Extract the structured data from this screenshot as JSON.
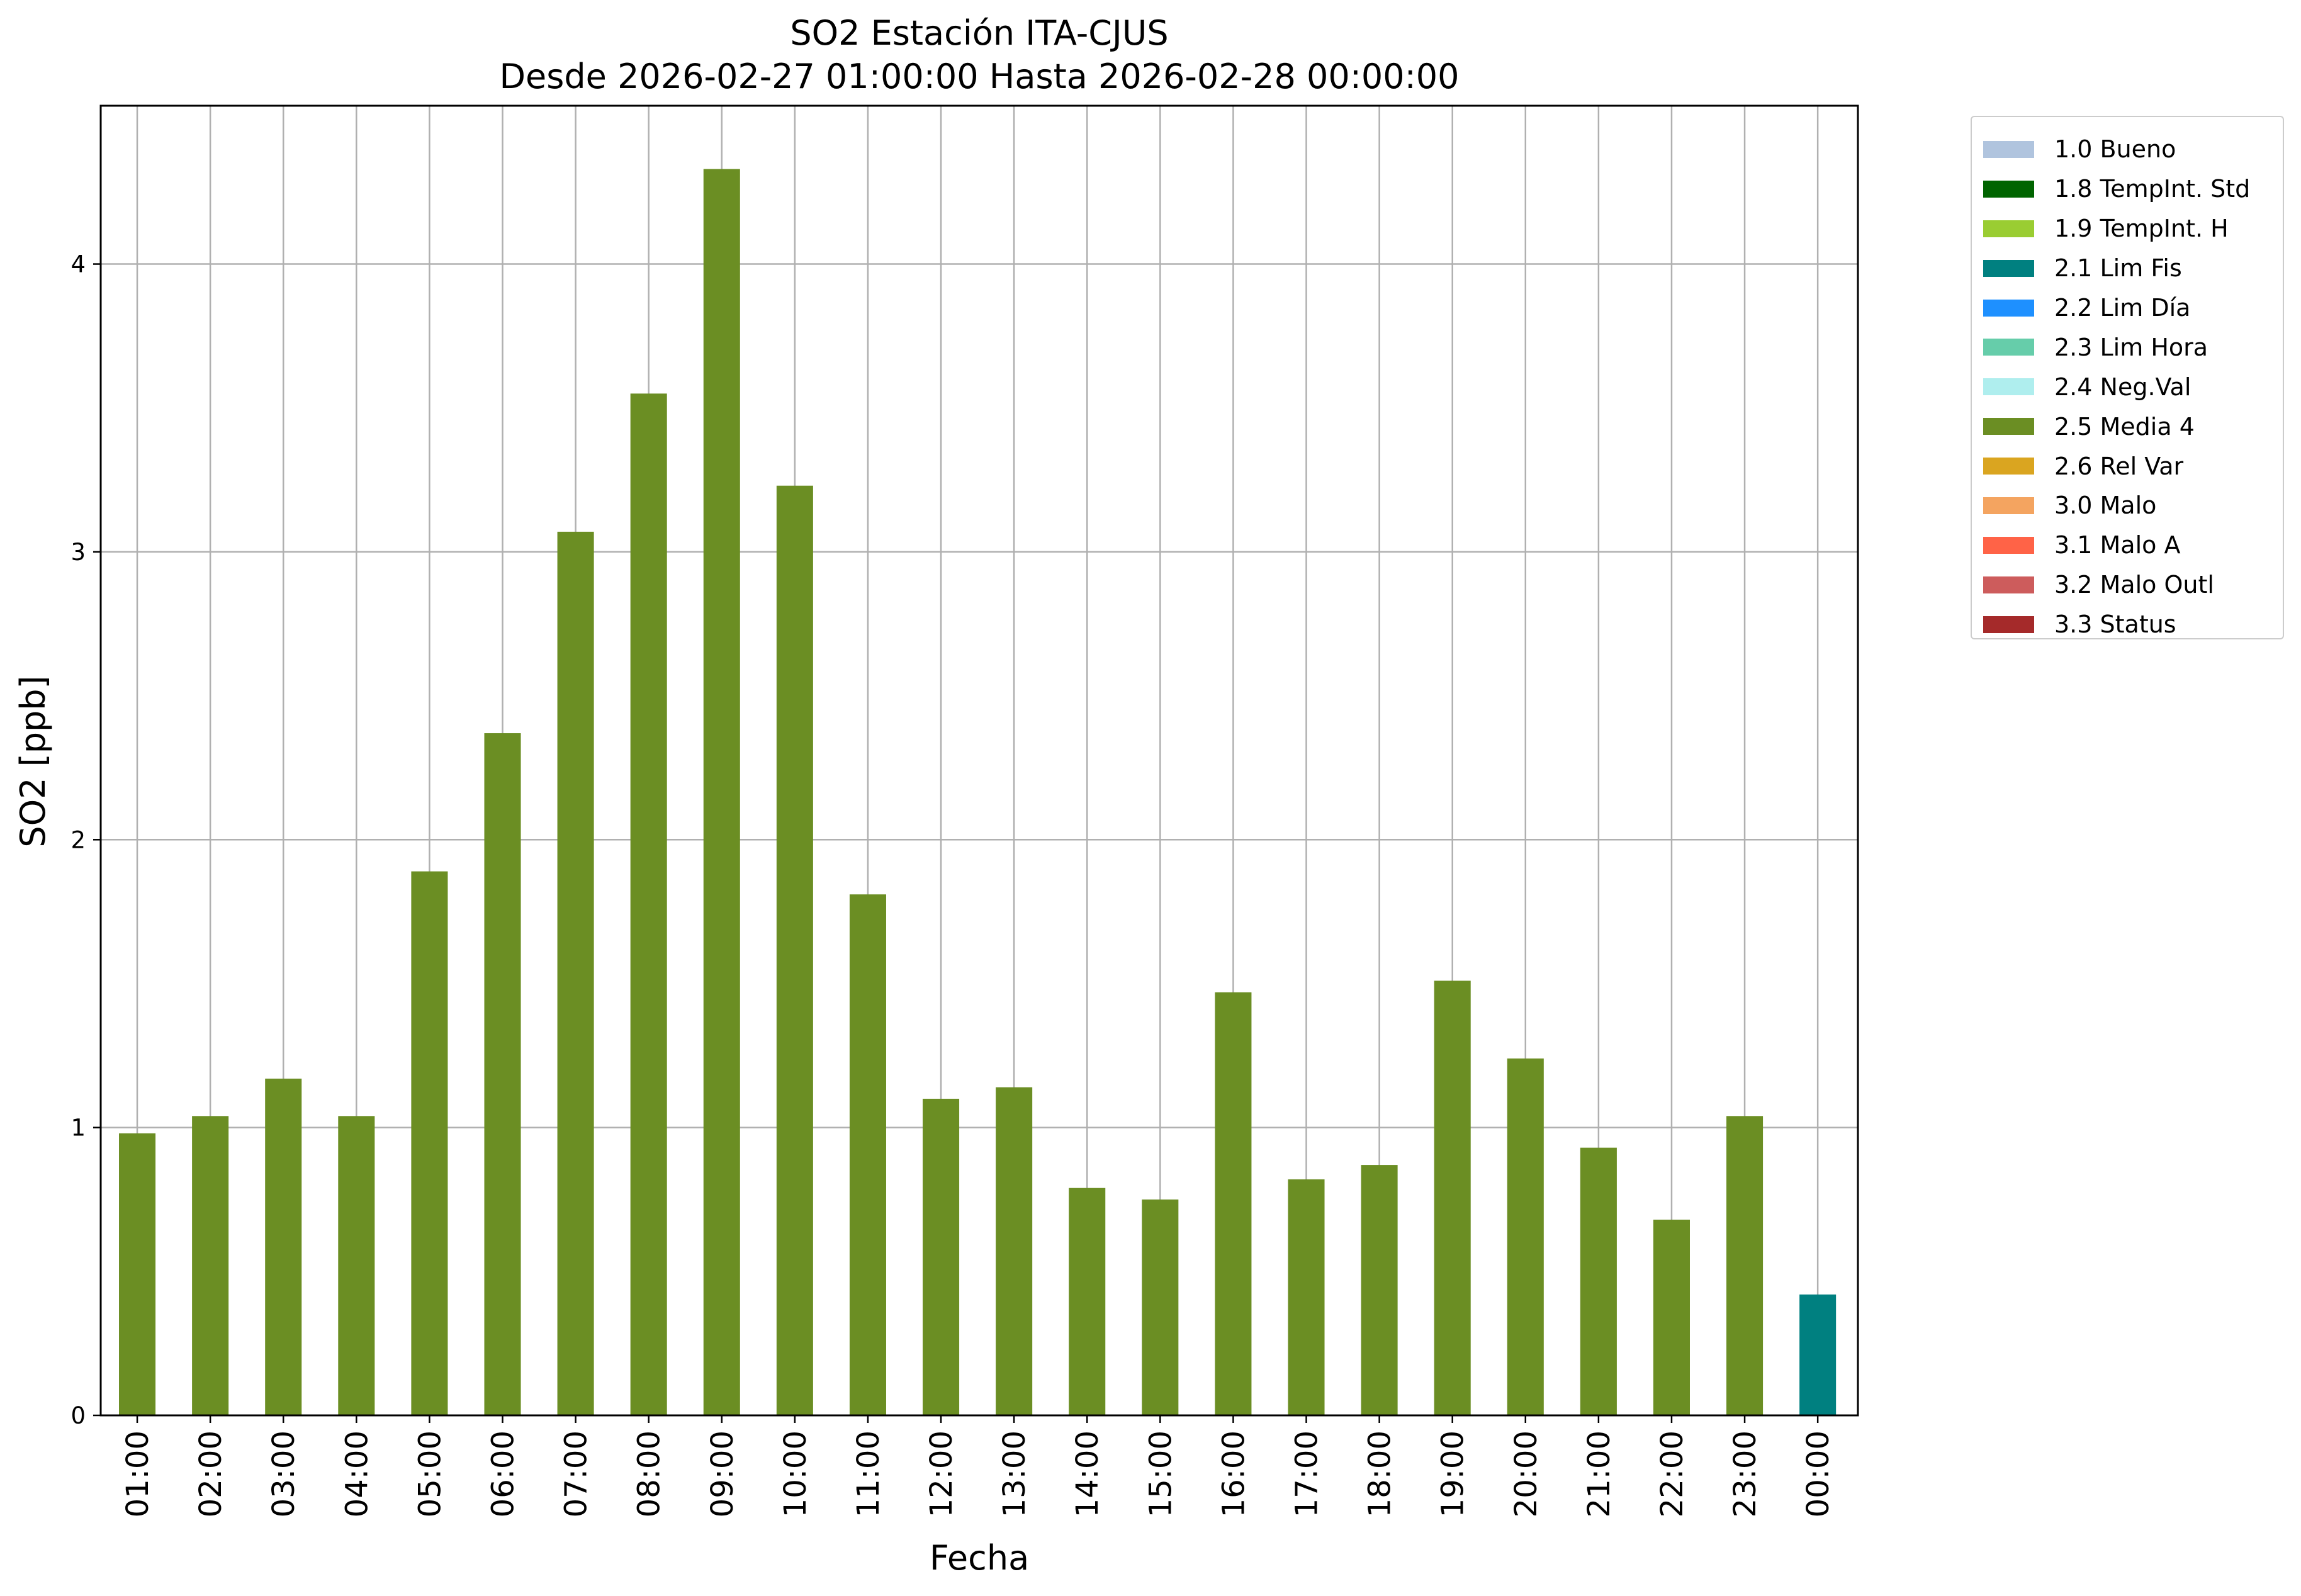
{
  "chart_data": {
    "type": "bar",
    "title": "SO2 Estación ITA-CJUS",
    "subtitle": "Desde 2026-02-27 01:00:00 Hasta 2026-02-28 00:00:00",
    "xlabel": "Fecha",
    "ylabel": "SO2 [ppb]",
    "ylim": [
      0,
      4.55
    ],
    "yticks": [
      0,
      1,
      2,
      3,
      4
    ],
    "grid": true,
    "legend_position": "outside-top-right",
    "categories": [
      "01:00",
      "02:00",
      "03:00",
      "04:00",
      "05:00",
      "06:00",
      "07:00",
      "08:00",
      "09:00",
      "10:00",
      "11:00",
      "12:00",
      "13:00",
      "14:00",
      "15:00",
      "16:00",
      "17:00",
      "18:00",
      "19:00",
      "20:00",
      "21:00",
      "22:00",
      "23:00",
      "00:00"
    ],
    "values": [
      0.98,
      1.04,
      1.17,
      1.04,
      1.89,
      2.37,
      3.07,
      3.55,
      4.33,
      3.23,
      1.81,
      1.1,
      1.14,
      0.79,
      0.75,
      1.47,
      0.82,
      0.87,
      1.51,
      1.24,
      0.93,
      0.68,
      1.04,
      0.42
    ],
    "flags": [
      "2.5",
      "2.5",
      "2.5",
      "2.5",
      "2.5",
      "2.5",
      "2.5",
      "2.5",
      "2.5",
      "2.5",
      "2.5",
      "2.5",
      "2.5",
      "2.5",
      "2.5",
      "2.5",
      "2.5",
      "2.5",
      "2.5",
      "2.5",
      "2.5",
      "2.5",
      "2.5",
      "2.1"
    ],
    "legend": [
      {
        "code": "1.0",
        "label": "1.0 Bueno",
        "color": "#b0c4de"
      },
      {
        "code": "1.8",
        "label": "1.8 TempInt. Std",
        "color": "#006400"
      },
      {
        "code": "1.9",
        "label": "1.9 TempInt. H",
        "color": "#9acd32"
      },
      {
        "code": "2.1",
        "label": "2.1 Lim Fis",
        "color": "#008080"
      },
      {
        "code": "2.2",
        "label": "2.2 Lim Día",
        "color": "#1e90ff"
      },
      {
        "code": "2.3",
        "label": "2.3 Lim Hora",
        "color": "#66cdaa"
      },
      {
        "code": "2.4",
        "label": "2.4 Neg.Val",
        "color": "#afeeee"
      },
      {
        "code": "2.5",
        "label": "2.5 Media 4",
        "color": "#6b8e23"
      },
      {
        "code": "2.6",
        "label": "2.6 Rel Var",
        "color": "#daa520"
      },
      {
        "code": "3.0",
        "label": "3.0 Malo",
        "color": "#f4a460"
      },
      {
        "code": "3.1",
        "label": "3.1 Malo A",
        "color": "#ff6347"
      },
      {
        "code": "3.2",
        "label": "3.2 Malo Outl",
        "color": "#cd5c5c"
      },
      {
        "code": "3.3",
        "label": "3.3 Status",
        "color": "#a52a2a"
      }
    ]
  }
}
